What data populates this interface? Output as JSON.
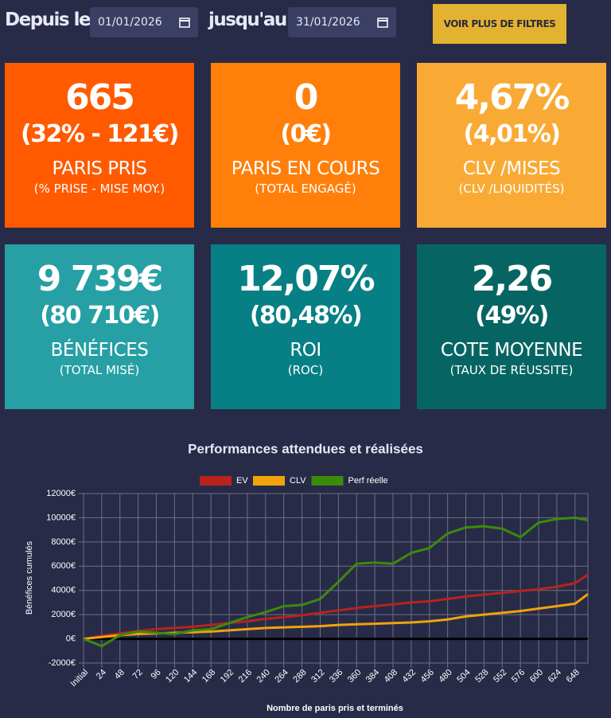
{
  "header": {
    "from_label": "Depuis le",
    "from_date": "01/01/2026",
    "to_label": "jusqu'au",
    "to_date": "31/01/2026",
    "button": "VOIR PLUS DE FILTRES"
  },
  "tiles": [
    {
      "main": "665",
      "sub": "(32% - 121€)",
      "label": "PARIS PRIS",
      "sublabel": "(% PRISE - MISE MOY.)",
      "color": "#ff5a00"
    },
    {
      "main": "0",
      "sub": "(0€)",
      "label": "PARIS EN COURS",
      "sublabel": "(TOTAL ENGAGÉ)",
      "color": "#ff7f0a"
    },
    {
      "main": "4,67%",
      "sub": "(4,01%)",
      "label": "CLV /MISES",
      "sublabel": "(CLV /LIQUIDITÉS)",
      "color": "#f9aa35"
    },
    {
      "main": "9 739€",
      "sub": "(80 710€)",
      "label": "BÉNÉFICES",
      "sublabel": "(TOTAL MISÉ)",
      "color": "#26a0a4"
    },
    {
      "main": "12,07%",
      "sub": "(80,48%)",
      "label": "ROI",
      "sublabel": "(ROC)",
      "color": "#078085"
    },
    {
      "main": "2,26",
      "sub": "(49%)",
      "label": "COTE MOYENNE",
      "sublabel": "(TAUX DE RÉUSSITE)",
      "color": "#066563"
    }
  ],
  "chart_data": {
    "type": "line",
    "title": "Performances attendues et réalisées",
    "y_label": "Bénéfices cumulés",
    "x_label": "Nombre de paris pris et terminés",
    "x": [
      0,
      24,
      48,
      72,
      96,
      120,
      144,
      168,
      192,
      216,
      240,
      264,
      288,
      312,
      336,
      360,
      384,
      408,
      432,
      456,
      480,
      504,
      528,
      552,
      576,
      600,
      624,
      648,
      665
    ],
    "series": [
      {
        "name": "EV",
        "color": "#b8231c",
        "values": [
          0,
          250,
          450,
          650,
          800,
          900,
          1000,
          1150,
          1300,
          1450,
          1650,
          1800,
          1950,
          2150,
          2350,
          2550,
          2700,
          2850,
          3000,
          3100,
          3300,
          3500,
          3650,
          3800,
          3950,
          4100,
          4300,
          4600,
          5300
        ]
      },
      {
        "name": "CLV",
        "color": "#f0a30a",
        "values": [
          0,
          150,
          300,
          400,
          450,
          500,
          550,
          600,
          700,
          800,
          900,
          950,
          1000,
          1050,
          1150,
          1200,
          1250,
          1300,
          1350,
          1450,
          1600,
          1850,
          2000,
          2150,
          2300,
          2500,
          2700,
          2900,
          3700
        ]
      },
      {
        "name": "Perf réelle",
        "color": "#3b8a0c",
        "values": [
          0,
          -600,
          300,
          600,
          500,
          400,
          700,
          800,
          1300,
          1800,
          2200,
          2700,
          2800,
          3300,
          4700,
          6200,
          6300,
          6200,
          7100,
          7500,
          8700,
          9200,
          9300,
          9100,
          8400,
          9600,
          9900,
          10000,
          9800
        ]
      }
    ],
    "xlim": [
      0,
      665
    ],
    "xticks": [
      {
        "value": 0,
        "label": "Initial"
      },
      24,
      48,
      72,
      96,
      120,
      144,
      168,
      192,
      216,
      240,
      264,
      288,
      312,
      336,
      360,
      384,
      408,
      432,
      456,
      480,
      504,
      528,
      552,
      576,
      600,
      624,
      648
    ],
    "ylim": [
      -2000,
      12000
    ],
    "yticks": [
      {
        "value": -2000,
        "label": "-2000€"
      },
      {
        "value": 0,
        "label": "0€"
      },
      {
        "value": 2000,
        "label": "2000€"
      },
      {
        "value": 4000,
        "label": "4000€"
      },
      {
        "value": 6000,
        "label": "6000€"
      },
      {
        "value": 8000,
        "label": "8000€"
      },
      {
        "value": 10000,
        "label": "10000€"
      },
      {
        "value": 12000,
        "label": "12000€"
      }
    ],
    "grid": true,
    "legend": "top"
  }
}
